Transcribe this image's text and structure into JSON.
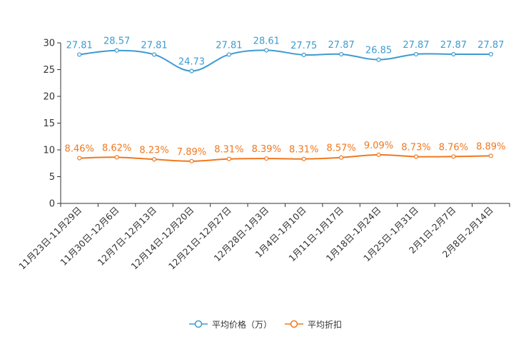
{
  "chart_data": {
    "type": "line",
    "categories": [
      "11月23日-11月29日",
      "11月30日-12月6日",
      "12月7日-12月13日",
      "12月14日-12月20日",
      "12月21日-12月27日",
      "12月28日-1月3日",
      "1月4日-1月10日",
      "1月11日-1月17日",
      "1月18日-1月24日",
      "1月25日-1月31日",
      "2月1日-2月7日",
      "2月8日-2月14日"
    ],
    "series": [
      {
        "name": "平均价格（万）",
        "color": "#3d9bd0",
        "values": [
          27.81,
          28.57,
          27.81,
          24.73,
          27.81,
          28.61,
          27.75,
          27.87,
          26.85,
          27.87,
          27.87,
          27.87
        ],
        "labels": [
          "27.81",
          "28.57",
          "27.81",
          "24.73",
          "27.81",
          "28.61",
          "27.75",
          "27.87",
          "26.85",
          "27.87",
          "27.87",
          "27.87"
        ]
      },
      {
        "name": "平均折扣",
        "color": "#f0781e",
        "values": [
          8.46,
          8.62,
          8.23,
          7.89,
          8.31,
          8.39,
          8.31,
          8.57,
          9.09,
          8.73,
          8.76,
          8.89
        ],
        "labels": [
          "8.46%",
          "8.62%",
          "8.23%",
          "7.89%",
          "8.31%",
          "8.39%",
          "8.31%",
          "8.57%",
          "9.09%",
          "8.73%",
          "8.76%",
          "8.89%"
        ]
      }
    ],
    "yticks": [
      "0",
      "5",
      "10",
      "15",
      "20",
      "25",
      "30"
    ],
    "ylim": [
      0,
      30
    ],
    "grid": false,
    "legend_position": "bottom"
  }
}
